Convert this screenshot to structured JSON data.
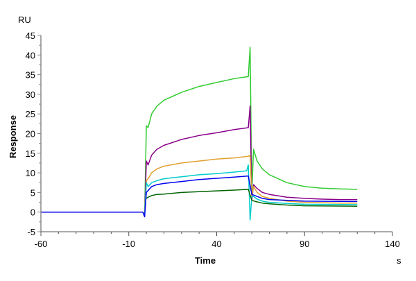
{
  "chart_data": {
    "type": "line",
    "title": "",
    "xlabel": "Time",
    "xunit": "s",
    "ylabel": "Response",
    "yunit": "RU",
    "xlim": [
      -60,
      140
    ],
    "ylim": [
      -5,
      45
    ],
    "xticks": [
      -60,
      -10,
      40,
      90,
      140
    ],
    "yticks": [
      -5,
      0,
      5,
      10,
      15,
      20,
      25,
      30,
      35,
      40,
      45
    ],
    "grid": false,
    "legend": "none",
    "series": [
      {
        "color": "#33cc33",
        "points": [
          [
            -60,
            0
          ],
          [
            -2,
            0
          ],
          [
            -1,
            -0.5
          ],
          [
            0,
            22
          ],
          [
            1,
            21.5
          ],
          [
            3,
            25
          ],
          [
            6,
            27
          ],
          [
            10,
            28.5
          ],
          [
            20,
            30.5
          ],
          [
            30,
            32
          ],
          [
            40,
            33
          ],
          [
            50,
            34
          ],
          [
            58,
            34.5
          ],
          [
            59,
            42
          ],
          [
            60,
            5
          ],
          [
            61,
            16
          ],
          [
            63,
            13
          ],
          [
            66,
            11
          ],
          [
            70,
            9.5
          ],
          [
            80,
            7.5
          ],
          [
            90,
            6.5
          ],
          [
            100,
            6.1
          ],
          [
            110,
            5.9
          ],
          [
            120,
            5.8
          ]
        ]
      },
      {
        "color": "#8b008b",
        "points": [
          [
            -60,
            0
          ],
          [
            -2,
            0
          ],
          [
            -1,
            -0.8
          ],
          [
            0,
            13
          ],
          [
            1,
            12
          ],
          [
            3,
            14.5
          ],
          [
            6,
            16
          ],
          [
            10,
            17
          ],
          [
            20,
            18.5
          ],
          [
            30,
            19.5
          ],
          [
            40,
            20.2
          ],
          [
            50,
            21
          ],
          [
            58,
            21.5
          ],
          [
            59,
            27
          ],
          [
            60,
            3
          ],
          [
            61,
            7
          ],
          [
            63,
            6
          ],
          [
            66,
            5
          ],
          [
            70,
            4.5
          ],
          [
            80,
            3.8
          ],
          [
            90,
            3.5
          ],
          [
            100,
            3.3
          ],
          [
            110,
            3.2
          ],
          [
            120,
            3.2
          ]
        ]
      },
      {
        "color": "#e0a030",
        "points": [
          [
            -60,
            0
          ],
          [
            -2,
            0
          ],
          [
            -1,
            -0.6
          ],
          [
            0,
            8
          ],
          [
            1,
            8.5
          ],
          [
            3,
            10
          ],
          [
            6,
            11
          ],
          [
            10,
            11.7
          ],
          [
            20,
            12.5
          ],
          [
            30,
            13
          ],
          [
            40,
            13.5
          ],
          [
            50,
            13.8
          ],
          [
            58,
            14.2
          ],
          [
            59,
            14.5
          ],
          [
            60,
            4
          ],
          [
            61,
            6.5
          ],
          [
            63,
            5
          ],
          [
            66,
            4
          ],
          [
            70,
            3.5
          ],
          [
            80,
            2.8
          ],
          [
            90,
            2.5
          ],
          [
            100,
            2.4
          ],
          [
            110,
            2.3
          ],
          [
            120,
            2.3
          ]
        ]
      },
      {
        "color": "#00cccc",
        "points": [
          [
            -60,
            0
          ],
          [
            -2,
            0
          ],
          [
            -1,
            -0.8
          ],
          [
            0,
            7.5
          ],
          [
            1,
            6.5
          ],
          [
            3,
            7.5
          ],
          [
            6,
            8
          ],
          [
            10,
            8.5
          ],
          [
            20,
            9
          ],
          [
            30,
            9.5
          ],
          [
            40,
            9.8
          ],
          [
            50,
            10.2
          ],
          [
            57,
            10.5
          ],
          [
            58,
            12
          ],
          [
            59,
            -2
          ],
          [
            60,
            4
          ],
          [
            61,
            4
          ],
          [
            63,
            3.3
          ],
          [
            66,
            2.8
          ],
          [
            70,
            2.5
          ],
          [
            80,
            2.2
          ],
          [
            90,
            2.0
          ],
          [
            120,
            1.9
          ]
        ]
      },
      {
        "color": "#0000ee",
        "points": [
          [
            -60,
            0
          ],
          [
            -2,
            0
          ],
          [
            -1,
            -1.2
          ],
          [
            0,
            5
          ],
          [
            1,
            5.5
          ],
          [
            3,
            6.5
          ],
          [
            6,
            7
          ],
          [
            10,
            7.3
          ],
          [
            20,
            7.8
          ],
          [
            30,
            8.3
          ],
          [
            40,
            8.6
          ],
          [
            50,
            8.9
          ],
          [
            58,
            9.2
          ],
          [
            60,
            4.5
          ],
          [
            63,
            4
          ],
          [
            66,
            3.5
          ],
          [
            70,
            3.2
          ],
          [
            80,
            3
          ],
          [
            90,
            2.8
          ],
          [
            120,
            2.7
          ]
        ]
      },
      {
        "color": "#006400",
        "points": [
          [
            0,
            3.5
          ],
          [
            1,
            3.8
          ],
          [
            3,
            4.2
          ],
          [
            6,
            4.5
          ],
          [
            10,
            4.6
          ],
          [
            20,
            5
          ],
          [
            30,
            5.2
          ],
          [
            40,
            5.4
          ],
          [
            50,
            5.6
          ],
          [
            58,
            5.8
          ],
          [
            60,
            3
          ],
          [
            62,
            2.7
          ],
          [
            66,
            2.3
          ],
          [
            70,
            2.1
          ],
          [
            80,
            1.8
          ],
          [
            90,
            1.6
          ],
          [
            120,
            1.5
          ]
        ]
      }
    ]
  }
}
